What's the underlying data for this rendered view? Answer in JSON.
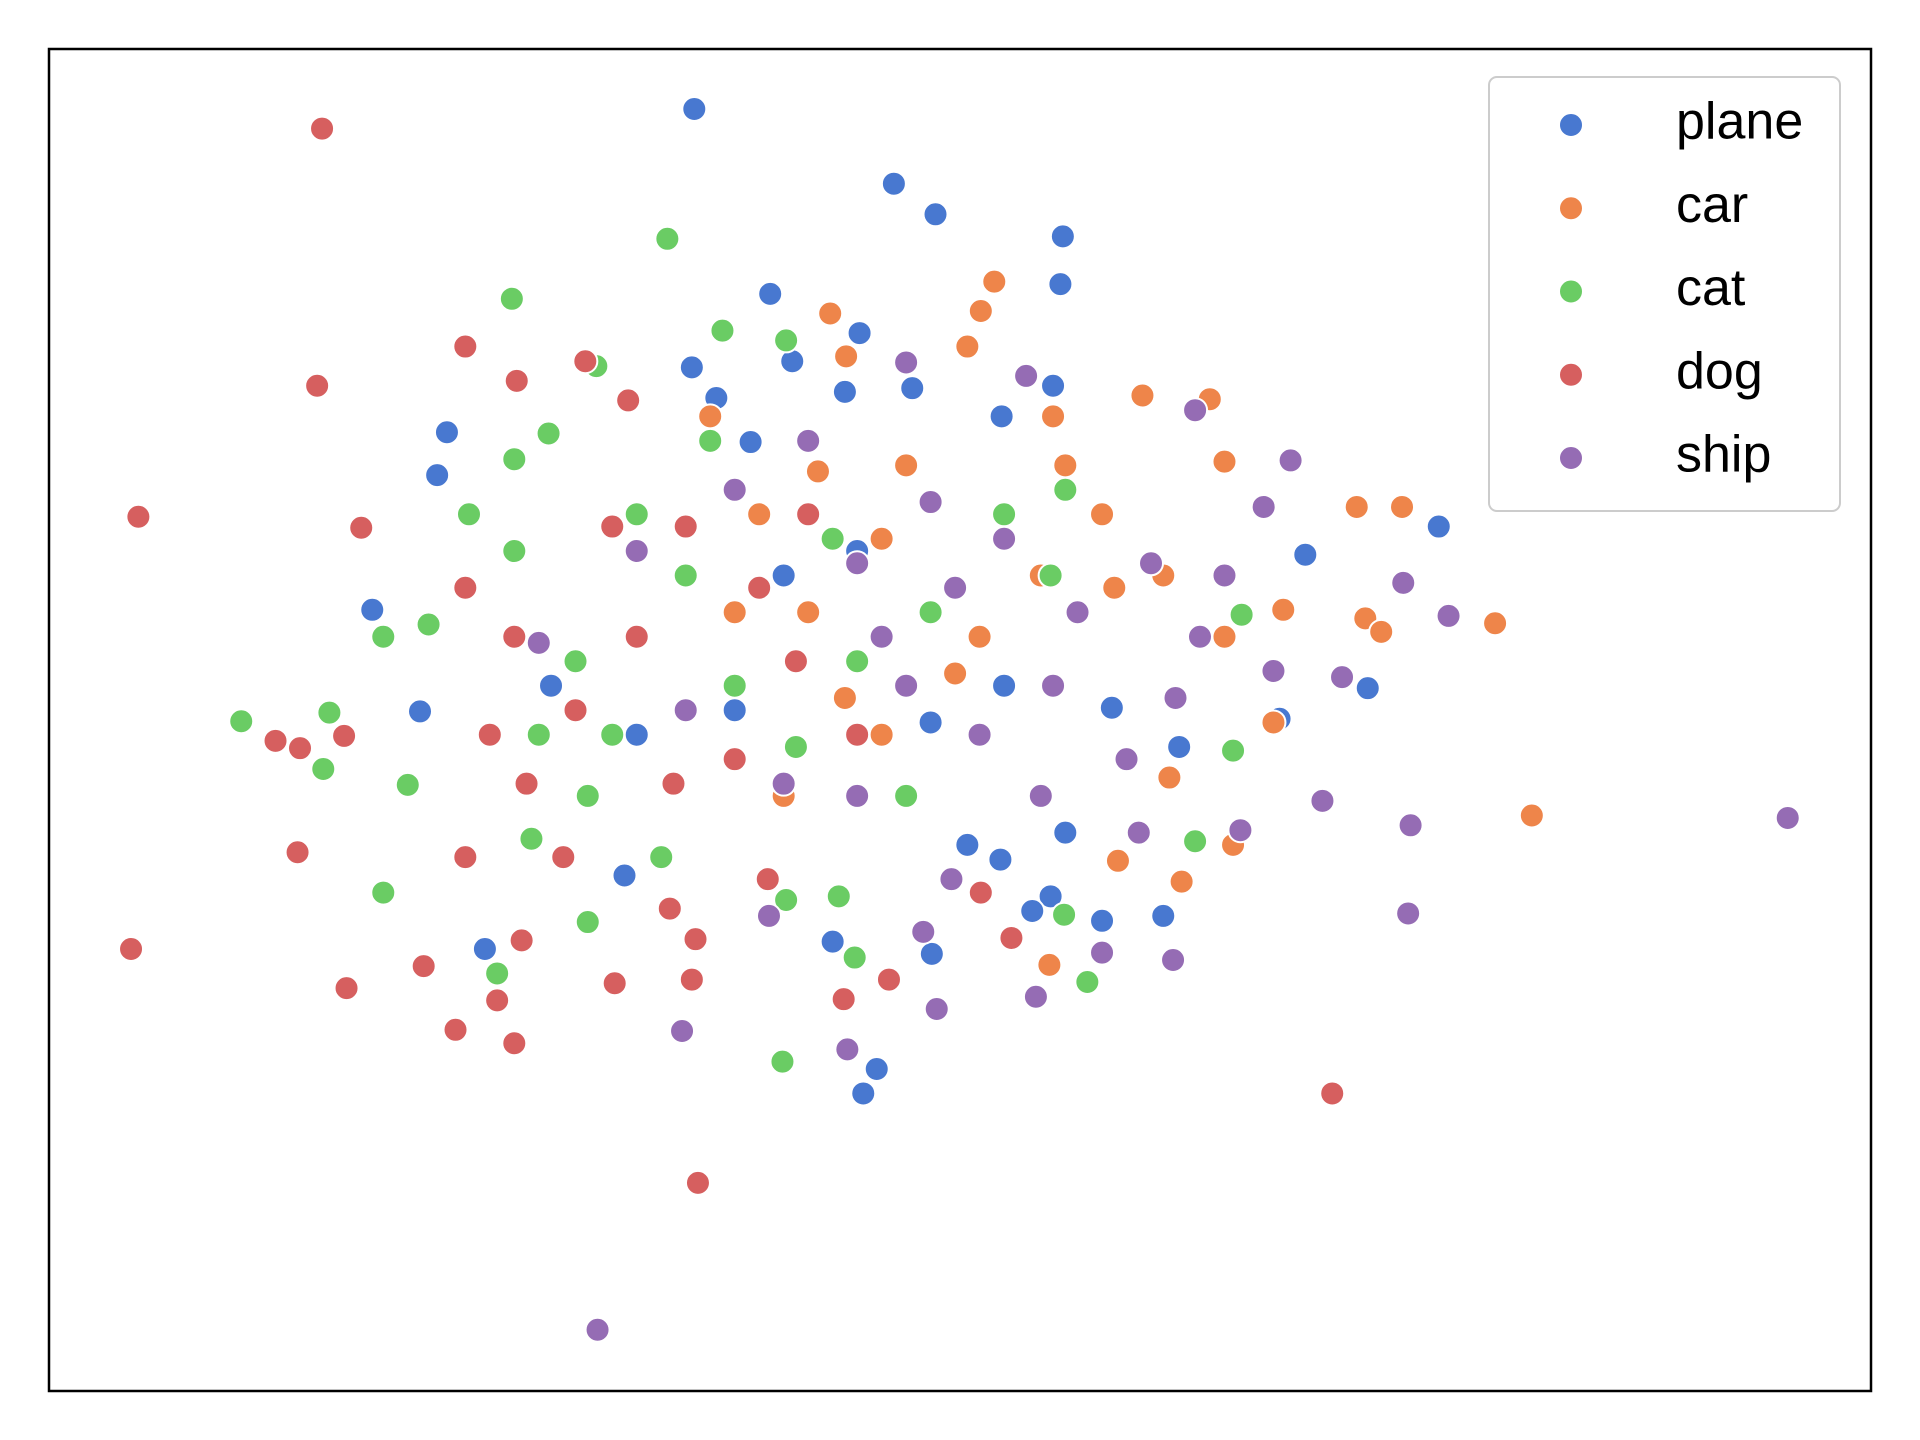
{
  "chart_data": {
    "type": "scatter",
    "legend": "upper right",
    "xlim": [
      0,
      1488
    ],
    "ylim": [
      0,
      1096
    ],
    "series": [
      {
        "name": "plane",
        "color": "#4878d0",
        "x": [
          527,
          690,
          724,
          828,
          826,
          589,
          662,
          525,
          607,
          325,
          317,
          264,
          303,
          1135,
          1077,
          1026,
          1005,
          910,
          860,
          818,
          803,
          777,
          721,
          640,
          676,
          665,
          356,
          923,
          868,
          705,
          573,
          650,
          545,
          778,
          820,
          750,
          830,
          480,
          560,
          410,
          660,
          720,
          600,
          780,
          470
        ],
        "y": [
          1047,
          986,
          961,
          943,
          904,
          896,
          864,
          836,
          841,
          783,
          748,
          638,
          555,
          706,
          574,
          683,
          549,
          388,
          384,
          404,
          392,
          434,
          357,
          367,
          263,
          243,
          361,
          526,
          558,
          819,
          775,
          816,
          811,
          796,
          821,
          446,
          456,
          536,
          556,
          576,
          686,
          546,
          666,
          576,
          421
        ]
      },
      {
        "name": "car",
        "color": "#ee854a",
        "x": [
          772,
          761,
          638,
          651,
          750,
          893,
          948,
          960,
          1068,
          1105,
          1181,
          1211,
          1075,
          1088,
          967,
          925,
          817,
          873,
          915,
          1008,
          1000,
          700,
          540,
          628,
          860,
          810,
          740,
          650,
          560,
          600,
          680,
          760,
          910,
          960,
          580,
          820,
          680,
          870,
          830,
          620
        ],
        "y": [
          906,
          882,
          880,
          845,
          853,
          813,
          810,
          759,
          722,
          722,
          627,
          470,
          631,
          620,
          446,
          416,
          348,
          433,
          501,
          638,
          546,
          756,
          796,
          751,
          716,
          666,
          586,
          566,
          636,
          486,
          536,
          616,
          666,
          616,
          716,
          796,
          696,
          656,
          756,
          636
        ]
      },
      {
        "name": "cat",
        "color": "#6acc64",
        "x": [
          505,
          378,
          550,
          602,
          447,
          408,
          380,
          343,
          273,
          157,
          229,
          224,
          293,
          273,
          366,
          599,
          658,
          848,
          829,
          936,
          967,
          974,
          818,
          645,
          602,
          440,
          394,
          310,
          380,
          430,
          460,
          500,
          520,
          560,
          610,
          660,
          720,
          780,
          830,
          540,
          480,
          440,
          640,
          700,
          400
        ],
        "y": [
          941,
          892,
          866,
          858,
          837,
          782,
          761,
          716,
          616,
          547,
          554,
          508,
          495,
          407,
          341,
          269,
          354,
          334,
          389,
          449,
          523,
          634,
          666,
          404,
          401,
          383,
          451,
          626,
          686,
          596,
          536,
          436,
          666,
          576,
          526,
          596,
          636,
          716,
          736,
          776,
          716,
          486,
          696,
          486,
          536
        ]
      },
      {
        "name": "dog",
        "color": "#d65f5f",
        "x": [
          223,
          219,
          340,
          382,
          438,
          73,
          255,
          67,
          185,
          205,
          241,
          203,
          243,
          306,
          332,
          380,
          366,
          386,
          530,
          1048,
          686,
          649,
          525,
          462,
          528,
          761,
          786,
          340,
          390,
          420,
          460,
          480,
          510,
          430,
          360,
          340,
          580,
          610,
          560,
          660,
          620,
          520,
          380,
          473,
          587,
          507
        ],
        "y": [
          1031,
          821,
          853,
          825,
          841,
          714,
          705,
          361,
          531,
          525,
          535,
          440,
          329,
          347,
          295,
          284,
          319,
          368,
          170,
          243,
          336,
          320,
          336,
          333,
          369,
          407,
          370,
          656,
          496,
          436,
          706,
          616,
          496,
          556,
          536,
          436,
          656,
          596,
          516,
          536,
          716,
          706,
          616,
          809,
          418,
          394
        ]
      },
      {
        "name": "ship",
        "color": "#956cb4",
        "x": [
          1420,
          1110,
          1112,
          1143,
          1106,
          1056,
          1040,
          1014,
          992,
          936,
          700,
          798,
          448,
          517,
          652,
          725,
          806,
          918,
          860,
          714,
          588,
          737,
          973,
          1000,
          920,
          880,
          820,
          760,
          700,
          680,
          740,
          780,
          840,
          900,
          720,
          660,
          620,
          560,
          480,
          520,
          600,
          660,
          810,
          890,
          940,
          960,
          400
        ],
        "y": [
          468,
          390,
          462,
          633,
          660,
          583,
          482,
          760,
          722,
          801,
          840,
          829,
          50,
          294,
          279,
          312,
          322,
          352,
          358,
          375,
          388,
          418,
          458,
          588,
          566,
          516,
          576,
          536,
          576,
          616,
          656,
          696,
          636,
          676,
          726,
          676,
          776,
          736,
          686,
          556,
          496,
          486,
          486,
          456,
          616,
          666,
          611
        ]
      }
    ]
  }
}
